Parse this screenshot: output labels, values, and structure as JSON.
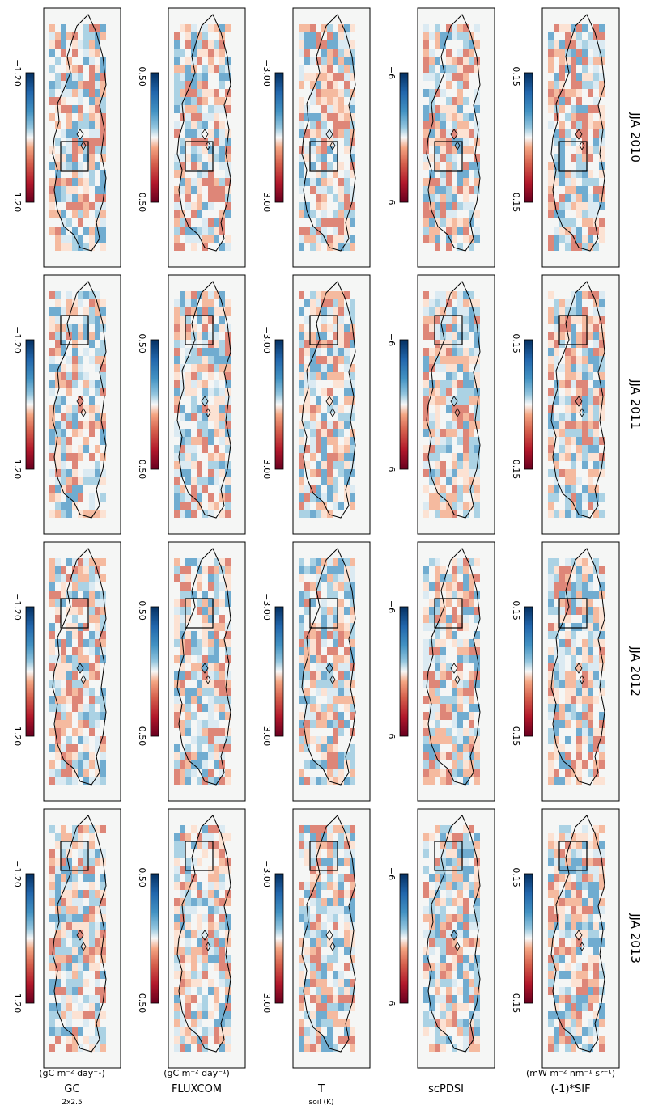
{
  "figure": {
    "years": [
      "JJA 2010",
      "JJA 2011",
      "JJA 2012",
      "JJA 2013"
    ],
    "rows": [
      {
        "label": "(-1)*SIF",
        "unit": "(mW m⁻² nm⁻¹ sr⁻¹)"
      },
      {
        "label": "scPDSI",
        "unit": ""
      },
      {
        "label": "T",
        "sub": "soil (K)",
        "unit": ""
      },
      {
        "label": "FLUXCOM",
        "unit": "(gC m⁻² day⁻¹)"
      },
      {
        "label": "GC",
        "sub": "2x2.5",
        "unit": "(gC m⁻² day⁻¹)"
      }
    ],
    "colorbars": [
      {
        "min": -0.15,
        "max": 0.15,
        "min_label": "−0.15",
        "max_label": "0.15"
      },
      {
        "min": -6,
        "max": 6,
        "min_label": "−6",
        "max_label": "6"
      },
      {
        "min": -3.0,
        "max": 3.0,
        "min_label": "−3.00",
        "max_label": "3.00"
      },
      {
        "min": -0.5,
        "max": 0.5,
        "min_label": "−0.50",
        "max_label": "0.50"
      },
      {
        "min": -1.2,
        "max": 1.2,
        "min_label": "−1.20",
        "max_label": "1.20"
      }
    ],
    "colors": {
      "negative": "#2166ac",
      "neutral": "#f5f5f5",
      "positive": "#b2182b",
      "outline": "#000000"
    }
  },
  "chart_data": {
    "type": "heatmap",
    "colormap": "RdBu_r (diverging)",
    "x_panels": [
      "JJA 2010",
      "JJA 2011",
      "JJA 2012",
      "JJA 2013"
    ],
    "y_panels": [
      "(-1)*SIF",
      "scPDSI",
      "T soil (K)",
      "FLUXCOM",
      "GC 2x2.5"
    ],
    "value_ranges": [
      [
        -0.15,
        0.15
      ],
      [
        -6,
        6
      ],
      [
        -3.0,
        3.0
      ],
      [
        -0.5,
        0.5
      ],
      [
        -1.2,
        1.2
      ]
    ]
  }
}
